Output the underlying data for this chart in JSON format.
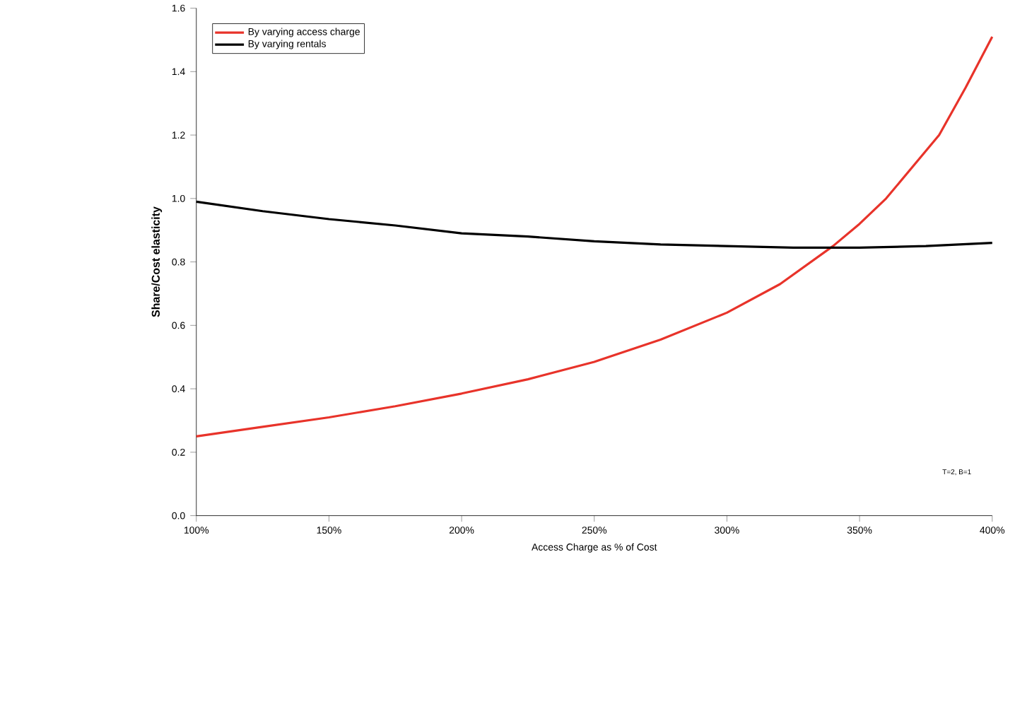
{
  "chart_data": {
    "type": "line",
    "xlabel": "Access Charge as % of Cost",
    "ylabel": "Share/Cost elasticity",
    "xlim": [
      100,
      400
    ],
    "xticks": [
      {
        "value": 100,
        "label": "100%"
      },
      {
        "value": 150,
        "label": "150%"
      },
      {
        "value": 200,
        "label": "200%"
      },
      {
        "value": 250,
        "label": "250%"
      },
      {
        "value": 300,
        "label": "300%"
      },
      {
        "value": 350,
        "label": "350%"
      },
      {
        "value": 400,
        "label": "400%"
      }
    ],
    "ylim": [
      0,
      1.6
    ],
    "yticks": [
      {
        "value": 0,
        "label": "0.0"
      },
      {
        "value": 0.2,
        "label": "0.2"
      },
      {
        "value": 0.4,
        "label": "0.4"
      },
      {
        "value": 0.6,
        "label": "0.6"
      },
      {
        "value": 0.8,
        "label": "0.8"
      },
      {
        "value": 1.0,
        "label": "1.0"
      },
      {
        "value": 1.2,
        "label": "1.2"
      },
      {
        "value": 1.4,
        "label": "1.4"
      },
      {
        "value": 1.6,
        "label": "1.6"
      }
    ],
    "legend": "top left",
    "grid": false,
    "marker": "none",
    "line_style": "solid",
    "annotations": [
      "T=2, B=1"
    ],
    "series": [
      {
        "name": "By varying access charge",
        "color": "#e8332a",
        "x": [
          100,
          125,
          150,
          175,
          200,
          225,
          250,
          275,
          300,
          320,
          340,
          350,
          360,
          380,
          390,
          400
        ],
        "values": [
          0.25,
          0.28,
          0.31,
          0.345,
          0.385,
          0.43,
          0.485,
          0.555,
          0.64,
          0.73,
          0.85,
          0.92,
          1.0,
          1.2,
          1.35,
          1.51
        ]
      },
      {
        "name": "By varying rentals",
        "color": "#000000",
        "x": [
          100,
          125,
          150,
          175,
          200,
          225,
          250,
          275,
          300,
          325,
          350,
          375,
          400
        ],
        "values": [
          0.99,
          0.96,
          0.935,
          0.915,
          0.89,
          0.88,
          0.865,
          0.855,
          0.85,
          0.845,
          0.845,
          0.85,
          0.86
        ]
      }
    ]
  }
}
